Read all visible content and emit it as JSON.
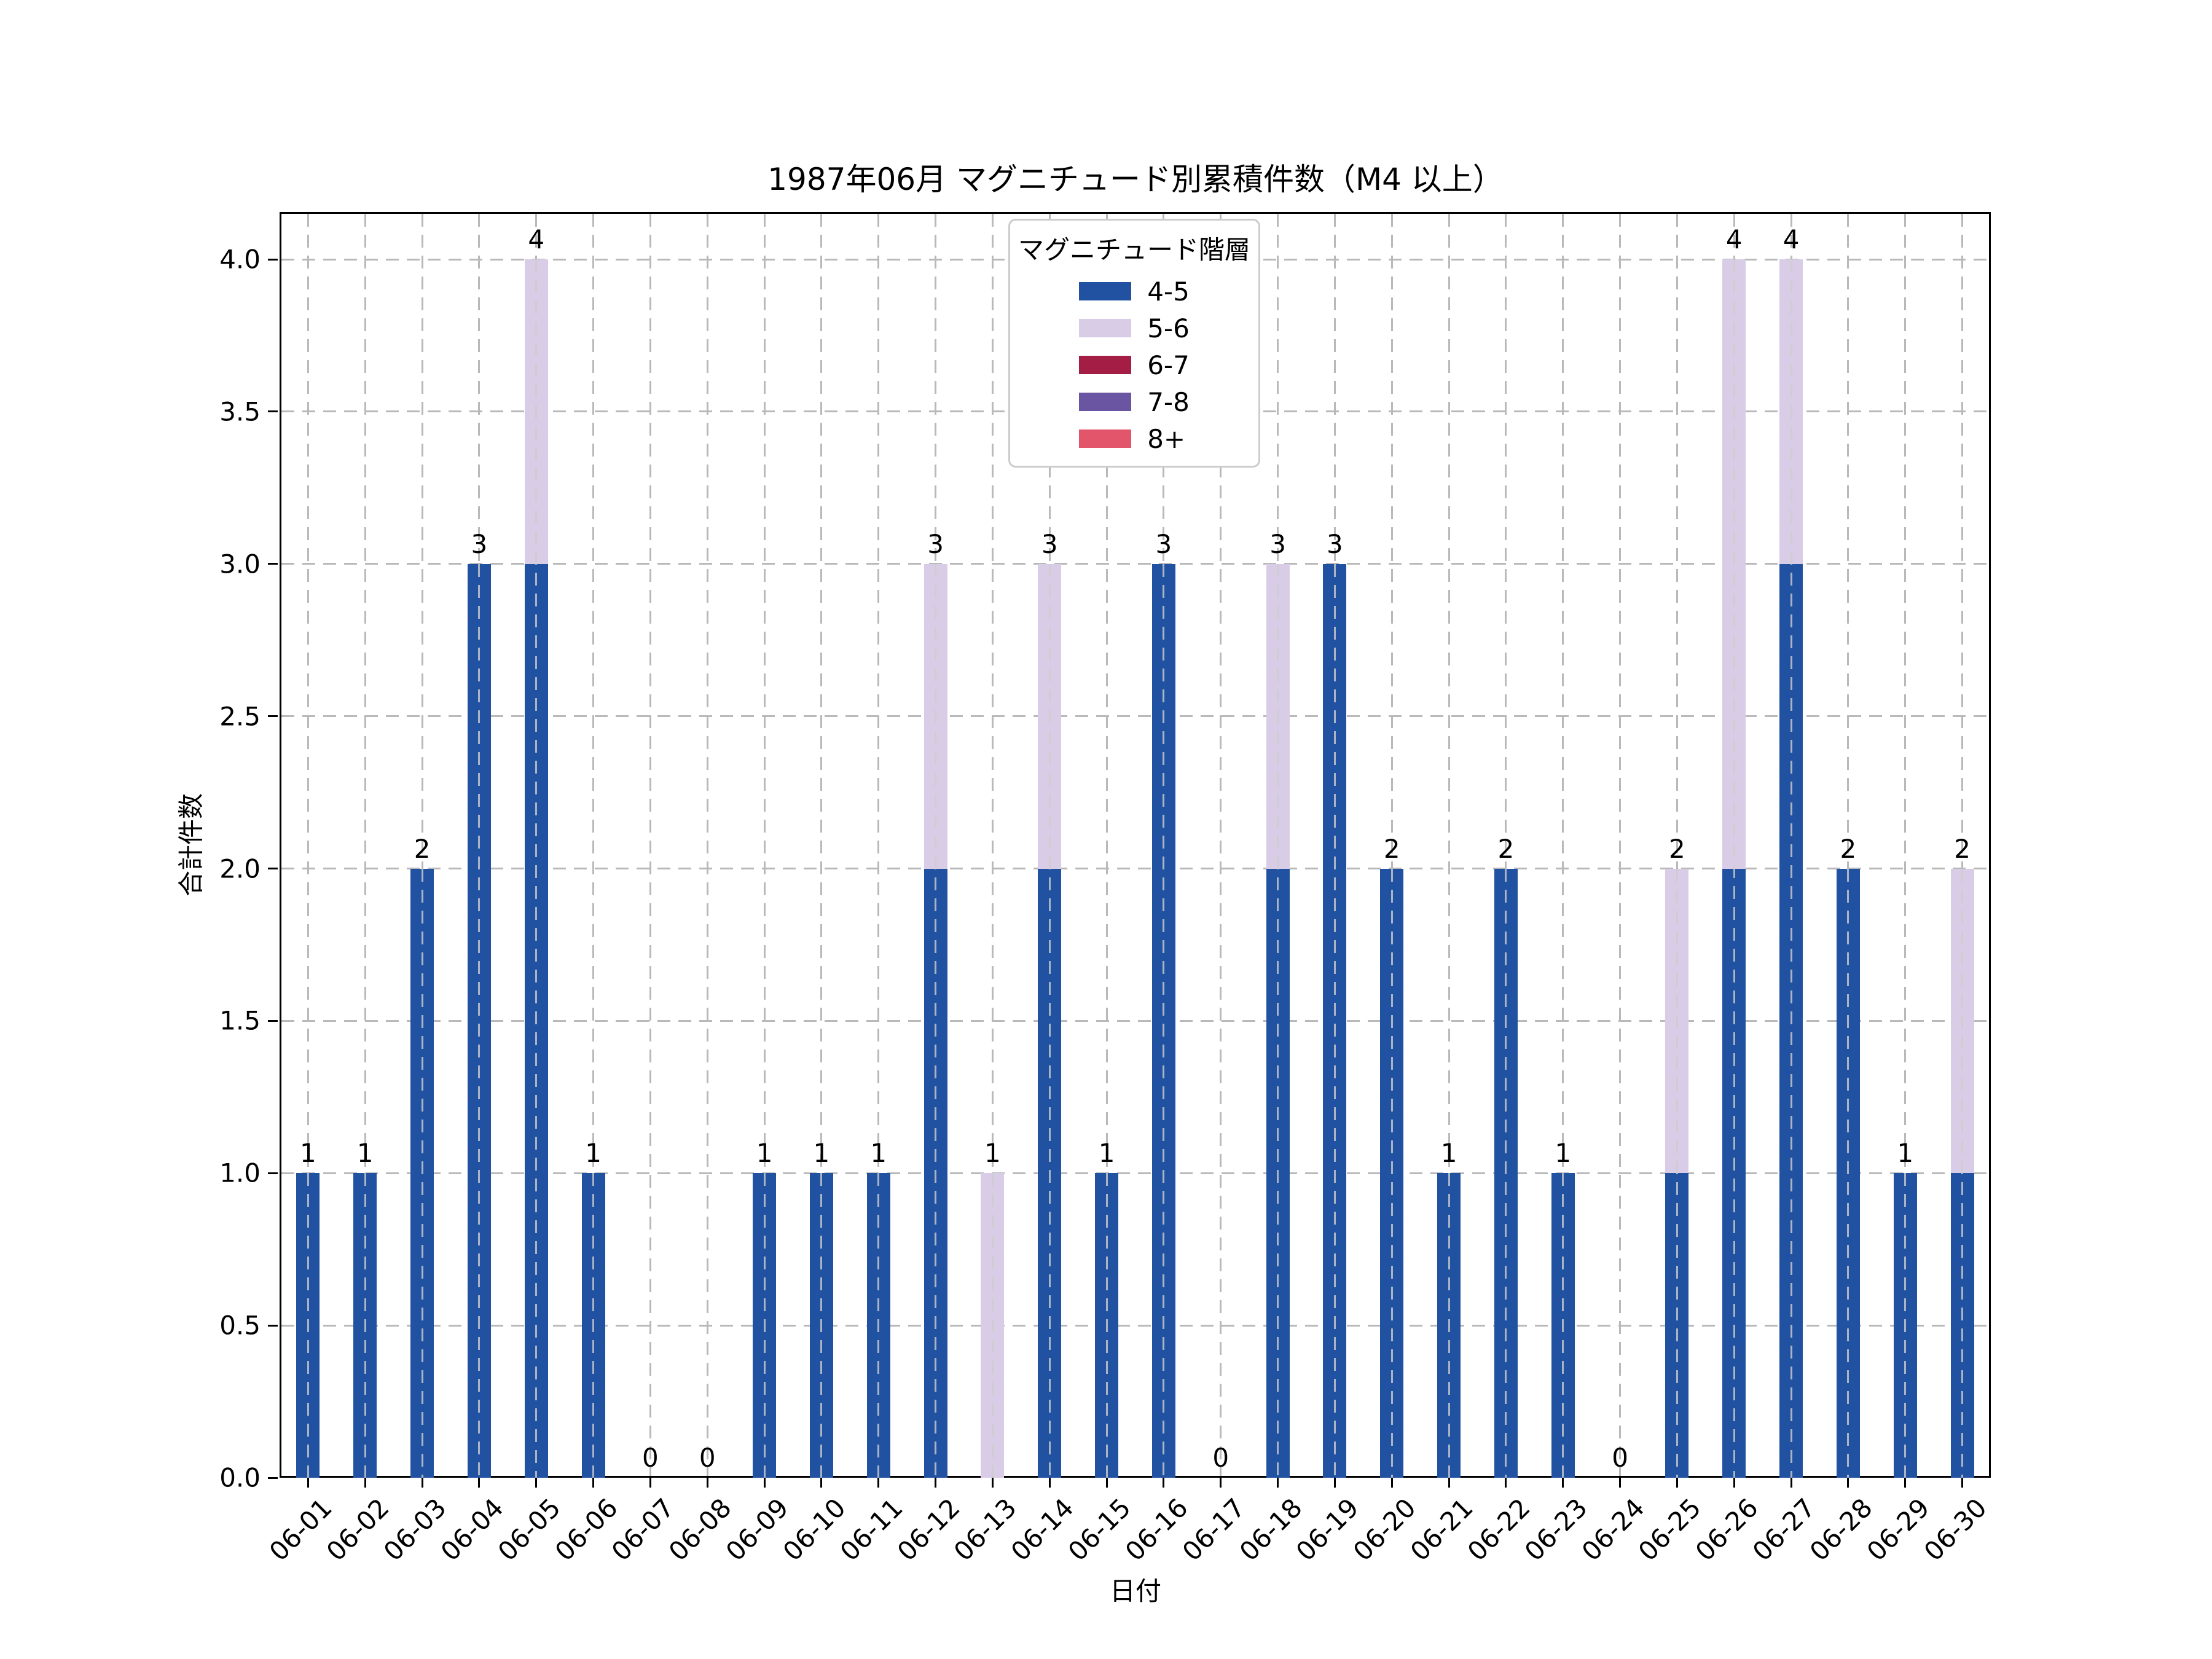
{
  "title": "1987年06月 マグニチュード別累積件数（M4 以上）",
  "axes": {
    "xlabel": "日付",
    "ylabel": "合計件数",
    "ytick_labels": [
      "0.0",
      "0.5",
      "1.0",
      "1.5",
      "2.0",
      "2.5",
      "3.0",
      "3.5",
      "4.0"
    ],
    "ytick_values": [
      0,
      0.5,
      1,
      1.5,
      2,
      2.5,
      3,
      3.5,
      4
    ]
  },
  "legend": {
    "title": "マグニチュード階層",
    "entries": [
      {
        "label": "4-5",
        "color": "#2152A2"
      },
      {
        "label": "5-6",
        "color": "#D8CCE6"
      },
      {
        "label": "6-7",
        "color": "#A31D44"
      },
      {
        "label": "7-8",
        "color": "#6A55A3"
      },
      {
        "label": "8+",
        "color": "#E2556A"
      }
    ]
  },
  "chart_data": {
    "type": "bar",
    "stacked": true,
    "title": "1987年06月 マグニチュード別累積件数（M4 以上）",
    "xlabel": "日付",
    "ylabel": "合計件数",
    "ylim": [
      0,
      4.16
    ],
    "grid": true,
    "legend_position": "upper center",
    "categories": [
      "06-01",
      "06-02",
      "06-03",
      "06-04",
      "06-05",
      "06-06",
      "06-07",
      "06-08",
      "06-09",
      "06-10",
      "06-11",
      "06-12",
      "06-13",
      "06-14",
      "06-15",
      "06-16",
      "06-17",
      "06-18",
      "06-19",
      "06-20",
      "06-21",
      "06-22",
      "06-23",
      "06-24",
      "06-25",
      "06-26",
      "06-27",
      "06-28",
      "06-29",
      "06-30"
    ],
    "series": [
      {
        "name": "4-5",
        "color": "#2152A2",
        "values": [
          1,
          1,
          2,
          3,
          3,
          1,
          0,
          0,
          1,
          1,
          1,
          2,
          0,
          2,
          1,
          3,
          0,
          2,
          3,
          2,
          1,
          2,
          1,
          0,
          1,
          2,
          3,
          2,
          1,
          1
        ]
      },
      {
        "name": "5-6",
        "color": "#D8CCE6",
        "values": [
          0,
          0,
          0,
          0,
          1,
          0,
          0,
          0,
          0,
          0,
          0,
          1,
          1,
          1,
          0,
          0,
          0,
          1,
          0,
          0,
          0,
          0,
          0,
          0,
          1,
          2,
          1,
          0,
          0,
          1
        ]
      },
      {
        "name": "6-7",
        "color": "#A31D44",
        "values": [
          0,
          0,
          0,
          0,
          0,
          0,
          0,
          0,
          0,
          0,
          0,
          0,
          0,
          0,
          0,
          0,
          0,
          0,
          0,
          0,
          0,
          0,
          0,
          0,
          0,
          0,
          0,
          0,
          0,
          0
        ]
      },
      {
        "name": "7-8",
        "color": "#6A55A3",
        "values": [
          0,
          0,
          0,
          0,
          0,
          0,
          0,
          0,
          0,
          0,
          0,
          0,
          0,
          0,
          0,
          0,
          0,
          0,
          0,
          0,
          0,
          0,
          0,
          0,
          0,
          0,
          0,
          0,
          0,
          0
        ]
      },
      {
        "name": "8+",
        "color": "#E2556A",
        "values": [
          0,
          0,
          0,
          0,
          0,
          0,
          0,
          0,
          0,
          0,
          0,
          0,
          0,
          0,
          0,
          0,
          0,
          0,
          0,
          0,
          0,
          0,
          0,
          0,
          0,
          0,
          0,
          0,
          0,
          0
        ]
      }
    ],
    "totals": [
      1,
      1,
      2,
      3,
      4,
      1,
      0,
      0,
      1,
      1,
      1,
      3,
      1,
      3,
      1,
      3,
      0,
      3,
      3,
      2,
      1,
      2,
      1,
      0,
      2,
      4,
      4,
      2,
      1,
      2
    ]
  }
}
